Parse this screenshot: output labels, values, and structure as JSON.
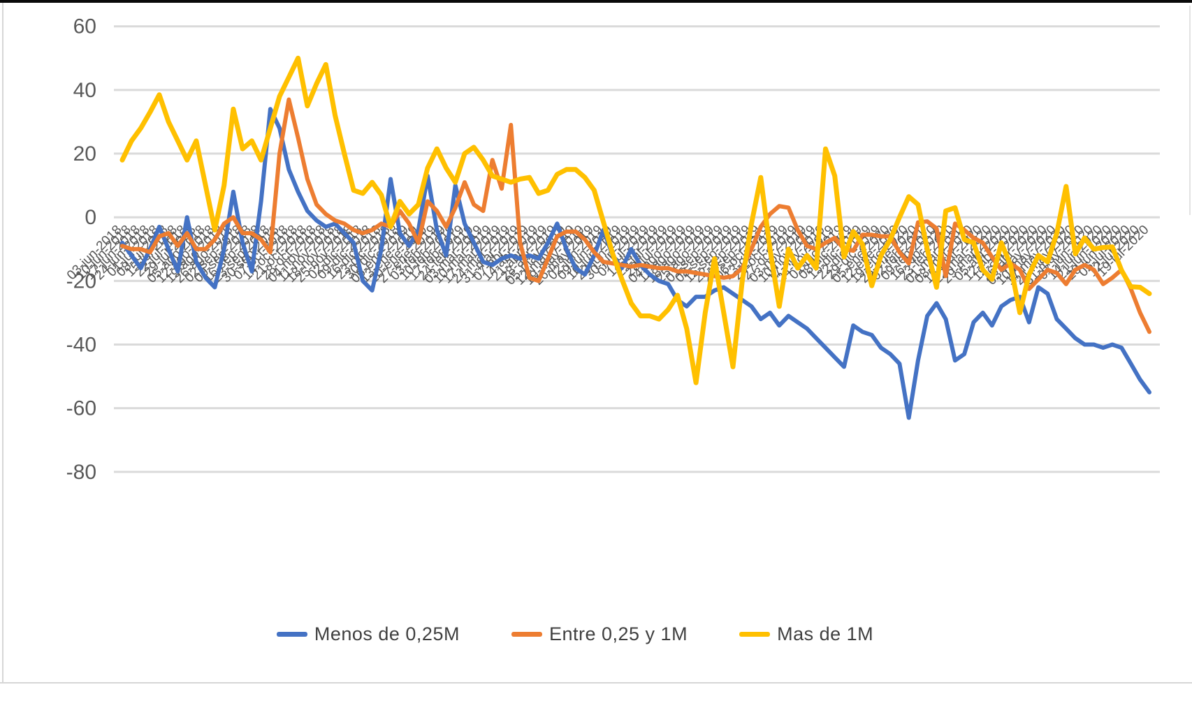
{
  "window": {
    "background": "#ffffff",
    "top_bar_color": "#0a0a0a",
    "frame_line_color": "#d6d6d6"
  },
  "chart_data": {
    "type": "line",
    "title": "",
    "xlabel": "",
    "ylabel": "",
    "ylim": [
      -80,
      60
    ],
    "y_ticks": [
      60,
      40,
      20,
      0,
      -20,
      -40,
      -60,
      -80
    ],
    "grid": true,
    "legend_position": "bottom",
    "axis_text_color": "#595959",
    "gridline_color": "#dadada",
    "x_labels": [
      "03-jun-2018",
      "10-jun-2018",
      "17-jun-2018",
      "24-jun-2018",
      "01-jul-2018",
      "08-jul-2018",
      "15-jul-2018",
      "22-jul-2018",
      "29-jul-2018",
      "05-ago-2018",
      "12-ago-2018",
      "19-ago-2018",
      "26-ago-2018",
      "02-sep-2018",
      "09-sep-2018",
      "16-sep-2018",
      "23-sep-2018",
      "30-sep-2018",
      "07-oct-2018",
      "14-oct-2018",
      "21-oct-2018",
      "28-oct-2018",
      "04-nov-2018",
      "11-nov-2018",
      "18-nov-2018",
      "25-nov-2018",
      "02-dic-2018",
      "09-dic-2018",
      "16-dic-2018",
      "23-dic-2018",
      "30-dic-2018",
      "06-ene-2019",
      "13-ene-2019",
      "20-ene-2019",
      "27-ene-2019",
      "03-feb-2019",
      "10-feb-2019",
      "17-feb-2019",
      "24-feb-2019",
      "03-mar-2019",
      "10-mar-2019",
      "17-mar-2019",
      "24-mar-2019",
      "31-mar-2019",
      "07-abr-2019",
      "14-abr-2019",
      "21-abr-2019",
      "28-abr-2019",
      "05-may-2019",
      "12-may-2019",
      "19-may-2019",
      "26-may-2019",
      "02-jun-2019",
      "09-jun-2019",
      "16-jun-2019",
      "23-jun-2019",
      "30-jun-2019",
      "07-jul-2019",
      "14-jul-2019",
      "21-jul-2019",
      "28-jul-2019",
      "04-ago-2019",
      "11-ago-2019",
      "18-ago-2019",
      "25-ago-2019",
      "01-sep-2019",
      "08-sep-2019",
      "15-sep-2019",
      "22-sep-2019",
      "29-sep-2019",
      "06-oct-2019",
      "13-oct-2019",
      "20-oct-2019",
      "27-oct-2019",
      "03-nov-2019",
      "10-nov-2019",
      "17-nov-2019",
      "24-nov-2019",
      "01-dic-2019",
      "08-dic-2019",
      "15-dic-2019",
      "22-dic-2019",
      "29-dic-2019",
      "05-ene-2020",
      "12-ene-2020",
      "19-ene-2020",
      "26-ene-2020",
      "02-feb-2020",
      "09-feb-2020",
      "16-feb-2020",
      "23-feb-2020",
      "01-mar-2020",
      "08-mar-2020",
      "15-mar-2020",
      "22-mar-2020",
      "29-mar-2020",
      "05-abr-2020",
      "12-abr-2020",
      "19-abr-2020",
      "26-abr-2020",
      "03-may-2020",
      "10-may-2020",
      "17-may-2020",
      "24-may-2020",
      "31-may-2020",
      "07-jun-2020",
      "14-jun-2020",
      "21-jun-2020",
      "28-jun-2020",
      "05-jul-2020",
      "12-jul-2020",
      "19-jul-2020"
    ],
    "series": [
      {
        "name": "Menos de 0,25M",
        "color": "#4472C4",
        "values": [
          -8,
          -12,
          -16,
          -10,
          -3,
          -10,
          -17,
          0,
          -14,
          -19,
          -22,
          -10,
          8,
          -8,
          -17,
          5,
          34,
          28,
          15,
          8,
          2,
          -1,
          -3,
          -2,
          -5,
          -8,
          -20,
          -23,
          -10,
          12,
          -5,
          -9,
          -4,
          13,
          -4,
          -12,
          10,
          -2,
          -8,
          -14,
          -15,
          -13,
          -12,
          -13,
          -12,
          -13,
          -8,
          -2,
          -10,
          -16,
          -18,
          -12,
          -4,
          -12,
          -16,
          -10,
          -15,
          -18,
          -20,
          -21,
          -26,
          -28,
          -25,
          -25,
          -23,
          -22,
          -24,
          -26,
          -28,
          -32,
          -30,
          -34,
          -31,
          -33,
          -35,
          -38,
          -41,
          -44,
          -47,
          -34,
          -36,
          -37,
          -41,
          -43,
          -46,
          -63,
          -45,
          -31,
          -27,
          -32,
          -45,
          -43,
          -33,
          -30,
          -34,
          -28,
          -26,
          -25,
          -33,
          -22,
          -24,
          -32,
          -35,
          -38,
          -40,
          -40,
          -41,
          -40,
          -41,
          -46,
          -51,
          -55
        ]
      },
      {
        "name": "Entre 0,25 y 1M",
        "color": "#ED7D31",
        "values": [
          -9,
          -10,
          -10,
          -11,
          -6,
          -5,
          -9,
          -5,
          -10,
          -10,
          -7,
          -2,
          0,
          -5,
          -5,
          -7,
          -11,
          20,
          37,
          25,
          12,
          4,
          1,
          -1,
          -2,
          -4,
          -5,
          -4,
          -2,
          -3,
          2,
          -2,
          -8,
          5,
          2,
          -3,
          3,
          11,
          4,
          2,
          18,
          9,
          29,
          -8,
          -19,
          -20,
          -13,
          -6,
          -4.5,
          -4.5,
          -7,
          -11,
          -14,
          -14.5,
          -15,
          -15.5,
          -15,
          -15.5,
          -16,
          -16,
          -17,
          -17,
          -17.5,
          -18,
          -18.5,
          -19,
          -18.5,
          -16,
          -10,
          -3,
          1,
          3.5,
          3,
          -4,
          -9,
          -10,
          -8,
          -6.5,
          -10,
          -10.5,
          -5.5,
          -5.5,
          -6,
          -6,
          -11,
          -14.5,
          -1.6,
          -1.3,
          -3.5,
          -18.5,
          -2,
          -4,
          -6.5,
          -8,
          -12.5,
          -16.5,
          -14.5,
          -16.5,
          -22.5,
          -19.5,
          -16.5,
          -17.5,
          -21,
          -16.5,
          -15,
          -16.5,
          -21,
          -19,
          -16.5,
          -22.5,
          -30,
          -36
        ]
      },
      {
        "name": "Mas de 1M",
        "color": "#FFC000",
        "values": [
          18,
          24,
          28,
          33,
          38.5,
          30,
          24,
          18,
          24,
          10,
          -4,
          10,
          34,
          21.5,
          24,
          18,
          28,
          38,
          44,
          50,
          35,
          42,
          48,
          32,
          20,
          8.5,
          7.5,
          11,
          7,
          -3,
          5,
          1,
          4,
          15.5,
          21.5,
          15.5,
          11,
          20,
          22,
          18,
          13,
          12,
          11,
          12,
          12.5,
          7.5,
          8.5,
          13.5,
          15,
          15,
          12.5,
          8.5,
          -1.5,
          -11.5,
          -19.5,
          -27,
          -31,
          -31,
          -32,
          -29,
          -24.5,
          -35,
          -52,
          -30,
          -13,
          -30,
          -47,
          -20,
          -2,
          12.5,
          -10,
          -28,
          -10,
          -16,
          -12,
          -16,
          21.5,
          13,
          -12.5,
          -4.5,
          -8.5,
          -21.5,
          -12,
          -7,
          0,
          6.5,
          4,
          -10,
          -22,
          2,
          3,
          -7,
          -8,
          -16.5,
          -19.5,
          -8,
          -15,
          -30,
          -18,
          -12,
          -14,
          -5,
          9.7,
          -11.5,
          -6.5,
          -10,
          -9.5,
          -9.3,
          -16.7,
          -21.8,
          -22,
          -24
        ]
      }
    ]
  }
}
